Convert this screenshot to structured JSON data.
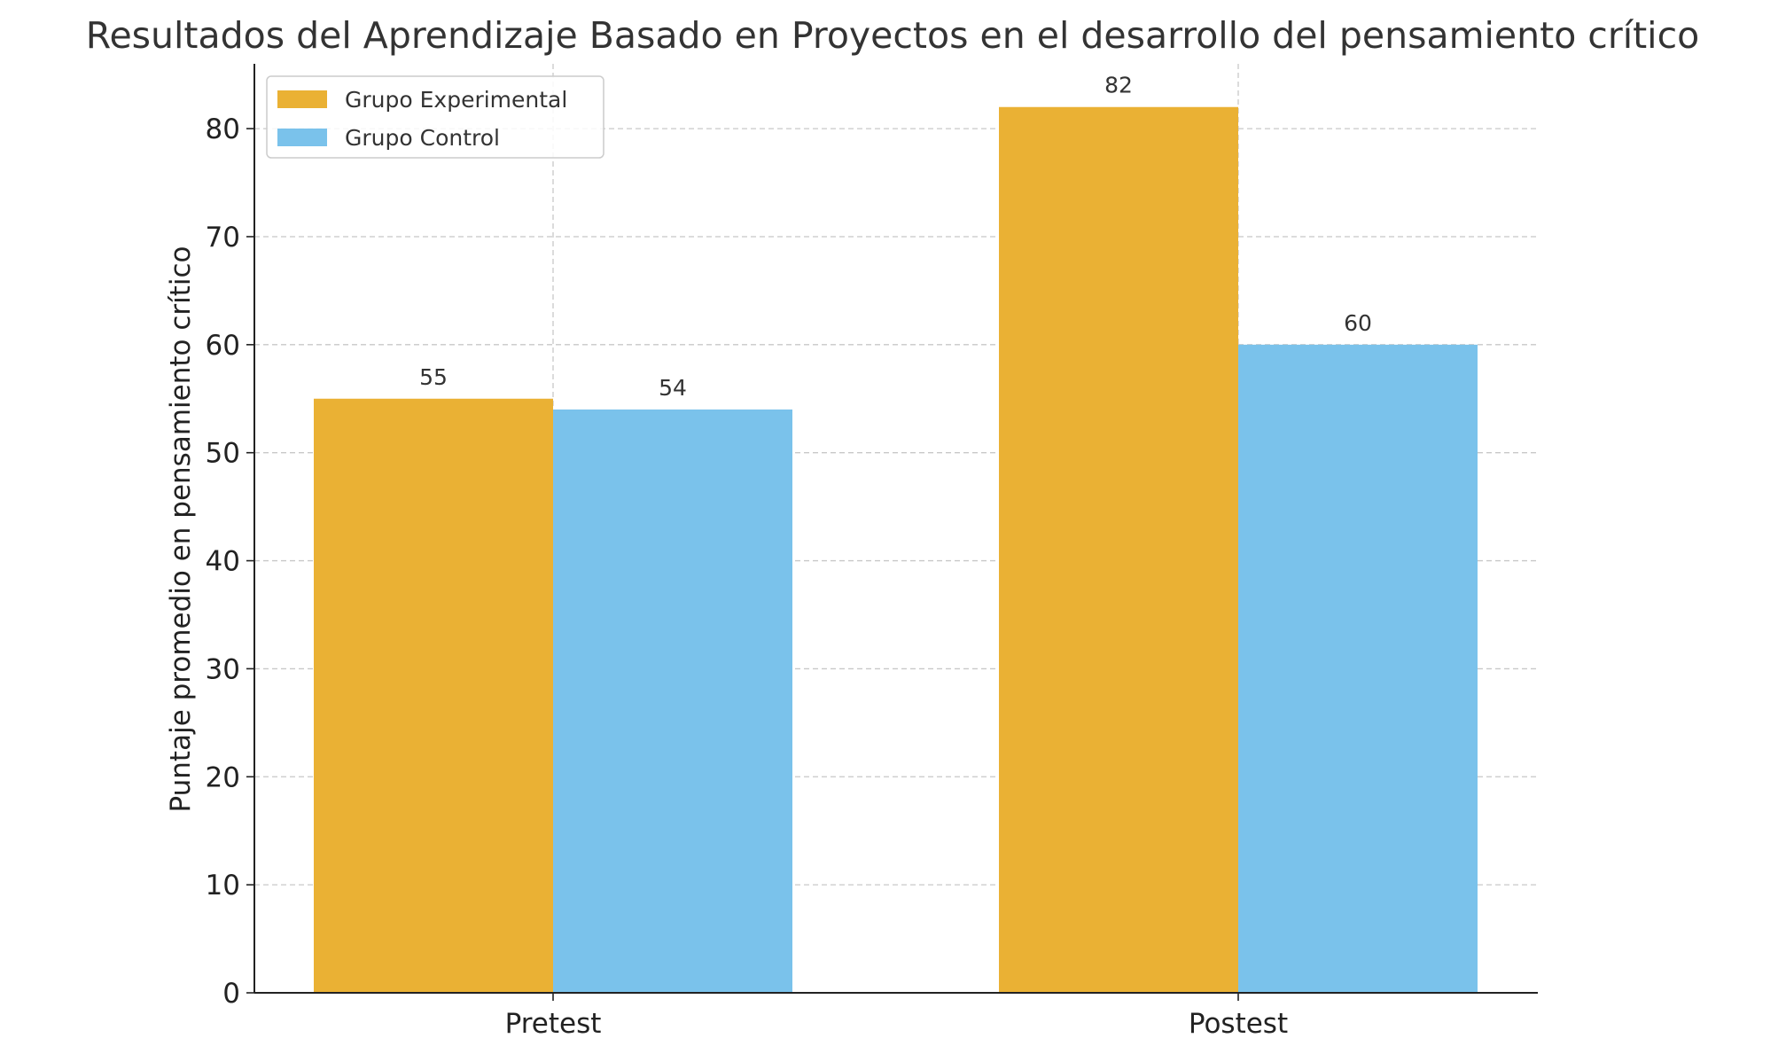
{
  "chart_data": {
    "type": "bar",
    "title": "Resultados del Aprendizaje Basado en Proyectos en el desarrollo del pensamiento crítico",
    "xlabel": "",
    "ylabel": "Puntaje promedio en pensamiento crítico",
    "categories": [
      "Pretest",
      "Postest"
    ],
    "series": [
      {
        "name": "Grupo Experimental",
        "values": [
          55,
          82
        ],
        "color": "#EAB134"
      },
      {
        "name": "Grupo Control",
        "values": [
          54,
          60
        ],
        "color": "#7AC2EB"
      }
    ],
    "ylim": [
      0,
      86
    ],
    "yticks": [
      0,
      10,
      20,
      30,
      40,
      50,
      60,
      70,
      80
    ],
    "grid": true,
    "legend_position": "top-left",
    "data_labels": true
  }
}
